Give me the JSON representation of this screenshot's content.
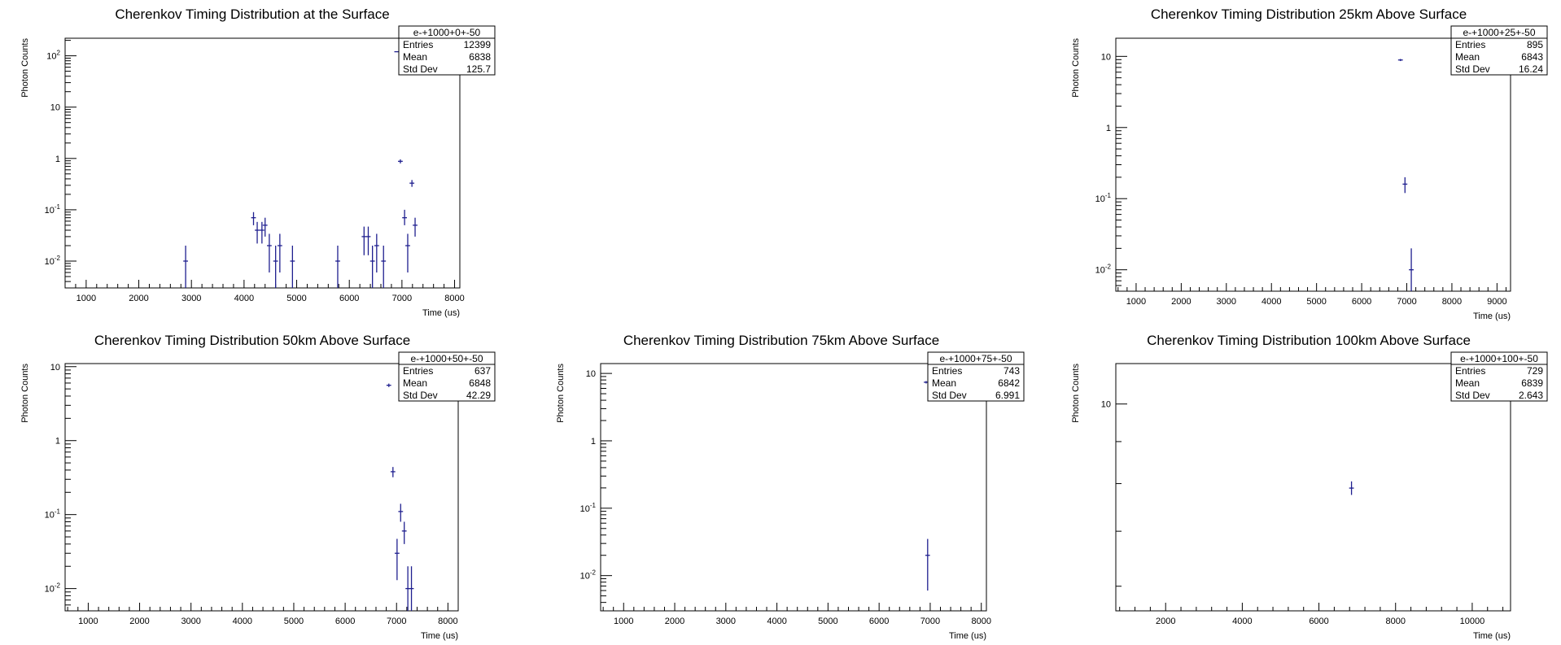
{
  "chart_data": [
    {
      "id": "p0",
      "type": "scatter",
      "title": "Cherenkov Timing Distribution at the Surface",
      "xlabel": "Time (us)",
      "ylabel": "Photon Counts",
      "xlim": [
        600,
        8100
      ],
      "ylim": [
        0.003,
        220
      ],
      "log_y": true,
      "x_ticks": [
        1000,
        2000,
        3000,
        4000,
        5000,
        6000,
        7000,
        8000
      ],
      "y_ticks": [
        {
          "v": 0.01,
          "base": "10",
          "exp": "-2"
        },
        {
          "v": 0.1,
          "base": "10",
          "exp": "-1"
        },
        {
          "v": 1,
          "base": "1",
          "exp": ""
        },
        {
          "v": 10,
          "base": "10",
          "exp": ""
        },
        {
          "v": 100,
          "base": "10",
          "exp": "2"
        }
      ],
      "stats": {
        "name": "e-+1000+0+-50",
        "rows": [
          [
            "Entries",
            "12399"
          ],
          [
            "Mean",
            "6838"
          ],
          [
            "Std Dev",
            "125.7"
          ]
        ]
      },
      "points": [
        {
          "x": 2890,
          "y": 0.01,
          "lo": 0.003,
          "hi": 0.02
        },
        {
          "x": 4180,
          "y": 0.07,
          "lo": 0.05,
          "hi": 0.09
        },
        {
          "x": 4250,
          "y": 0.04,
          "lo": 0.022,
          "hi": 0.058
        },
        {
          "x": 4340,
          "y": 0.04,
          "lo": 0.022,
          "hi": 0.058
        },
        {
          "x": 4400,
          "y": 0.05,
          "lo": 0.03,
          "hi": 0.07
        },
        {
          "x": 4480,
          "y": 0.02,
          "lo": 0.006,
          "hi": 0.034
        },
        {
          "x": 4600,
          "y": 0.01,
          "lo": 0.003,
          "hi": 0.02
        },
        {
          "x": 4680,
          "y": 0.02,
          "lo": 0.006,
          "hi": 0.034
        },
        {
          "x": 4920,
          "y": 0.01,
          "lo": 0.003,
          "hi": 0.02
        },
        {
          "x": 5780,
          "y": 0.01,
          "lo": 0.003,
          "hi": 0.02
        },
        {
          "x": 6280,
          "y": 0.03,
          "lo": 0.013,
          "hi": 0.047
        },
        {
          "x": 6360,
          "y": 0.03,
          "lo": 0.013,
          "hi": 0.047
        },
        {
          "x": 6440,
          "y": 0.01,
          "lo": 0.003,
          "hi": 0.02
        },
        {
          "x": 6520,
          "y": 0.02,
          "lo": 0.006,
          "hi": 0.034
        },
        {
          "x": 6650,
          "y": 0.01,
          "lo": 0.003,
          "hi": 0.02
        },
        {
          "x": 6900,
          "y": 120,
          "lo": 119,
          "hi": 121
        },
        {
          "x": 6970,
          "y": 0.88,
          "lo": 0.8,
          "hi": 0.96
        },
        {
          "x": 7050,
          "y": 0.07,
          "lo": 0.05,
          "hi": 0.1
        },
        {
          "x": 7110,
          "y": 0.02,
          "lo": 0.006,
          "hi": 0.034
        },
        {
          "x": 7190,
          "y": 0.33,
          "lo": 0.28,
          "hi": 0.38
        },
        {
          "x": 7250,
          "y": 0.05,
          "lo": 0.03,
          "hi": 0.07
        }
      ]
    },
    {
      "id": "p1",
      "type": "scatter",
      "title": "Cherenkov Timing Distribution 25km Above Surface",
      "xlabel": "Time (us)",
      "ylabel": "Photon Counts",
      "xlim": [
        550,
        9300
      ],
      "ylim": [
        0.005,
        18
      ],
      "log_y": true,
      "x_ticks": [
        1000,
        2000,
        3000,
        4000,
        5000,
        6000,
        7000,
        8000,
        9000
      ],
      "y_ticks": [
        {
          "v": 0.01,
          "base": "10",
          "exp": "-2"
        },
        {
          "v": 0.1,
          "base": "10",
          "exp": "-1"
        },
        {
          "v": 1,
          "base": "1",
          "exp": ""
        },
        {
          "v": 10,
          "base": "10",
          "exp": ""
        }
      ],
      "stats": {
        "name": "e-+1000+25+-50",
        "rows": [
          [
            "Entries",
            "895"
          ],
          [
            "Mean",
            "6843"
          ],
          [
            "Std Dev",
            "16.24"
          ]
        ]
      },
      "points": [
        {
          "x": 6860,
          "y": 8.9,
          "lo": 8.6,
          "hi": 9.2
        },
        {
          "x": 6960,
          "y": 0.16,
          "lo": 0.12,
          "hi": 0.2
        },
        {
          "x": 7100,
          "y": 0.01,
          "lo": 0.005,
          "hi": 0.02
        }
      ]
    },
    {
      "id": "p2",
      "type": "scatter",
      "title": "Cherenkov Timing Distribution 50km Above Surface",
      "xlabel": "Time (us)",
      "ylabel": "Photon Counts",
      "xlim": [
        550,
        8200
      ],
      "ylim": [
        0.005,
        11
      ],
      "log_y": true,
      "x_ticks": [
        1000,
        2000,
        3000,
        4000,
        5000,
        6000,
        7000,
        8000
      ],
      "y_ticks": [
        {
          "v": 0.01,
          "base": "10",
          "exp": "-2"
        },
        {
          "v": 0.1,
          "base": "10",
          "exp": "-1"
        },
        {
          "v": 1,
          "base": "1",
          "exp": ""
        },
        {
          "v": 10,
          "base": "10",
          "exp": ""
        }
      ],
      "stats": {
        "name": "e-+1000+50+-50",
        "rows": [
          [
            "Entries",
            "637"
          ],
          [
            "Mean",
            "6848"
          ],
          [
            "Std Dev",
            "42.29"
          ]
        ]
      },
      "points": [
        {
          "x": 6850,
          "y": 5.6,
          "lo": 5.3,
          "hi": 5.9
        },
        {
          "x": 6930,
          "y": 0.38,
          "lo": 0.32,
          "hi": 0.44
        },
        {
          "x": 7010,
          "y": 0.03,
          "lo": 0.013,
          "hi": 0.047
        },
        {
          "x": 7080,
          "y": 0.11,
          "lo": 0.08,
          "hi": 0.14
        },
        {
          "x": 7150,
          "y": 0.06,
          "lo": 0.04,
          "hi": 0.08
        },
        {
          "x": 7220,
          "y": 0.01,
          "lo": 0.005,
          "hi": 0.02
        },
        {
          "x": 7290,
          "y": 0.01,
          "lo": 0.005,
          "hi": 0.02
        }
      ]
    },
    {
      "id": "p3",
      "type": "scatter",
      "title": "Cherenkov Timing Distribution 75km Above Surface",
      "xlabel": "Time (us)",
      "ylabel": "Photon Counts",
      "xlim": [
        550,
        8100
      ],
      "ylim": [
        0.003,
        14
      ],
      "log_y": true,
      "x_ticks": [
        1000,
        2000,
        3000,
        4000,
        5000,
        6000,
        7000,
        8000
      ],
      "y_ticks": [
        {
          "v": 0.01,
          "base": "10",
          "exp": "-2"
        },
        {
          "v": 0.1,
          "base": "10",
          "exp": "-1"
        },
        {
          "v": 1,
          "base": "1",
          "exp": ""
        },
        {
          "v": 10,
          "base": "10",
          "exp": ""
        }
      ],
      "stats": {
        "name": "e-+1000+75+-50",
        "rows": [
          [
            "Entries",
            "743"
          ],
          [
            "Mean",
            "6842"
          ],
          [
            "Std Dev",
            "6.991"
          ]
        ]
      },
      "points": [
        {
          "x": 6920,
          "y": 7.4,
          "lo": 7.1,
          "hi": 7.7
        },
        {
          "x": 6950,
          "y": 0.02,
          "lo": 0.006,
          "hi": 0.035
        }
      ]
    },
    {
      "id": "p4",
      "type": "scatter",
      "title": "Cherenkov Timing Distribution 100km Above Surface",
      "xlabel": "Time (us)",
      "ylabel": "Photon Counts",
      "xlim": [
        700,
        11000
      ],
      "ylim": [
        5.6,
        11.2
      ],
      "log_y": true,
      "x_ticks": [
        2000,
        4000,
        6000,
        8000,
        10000
      ],
      "y_ticks": [
        {
          "v": 10,
          "base": "10",
          "exp": ""
        }
      ],
      "stats": {
        "name": "e-+1000+100+-50",
        "rows": [
          [
            "Entries",
            "729"
          ],
          [
            "Mean",
            "6839"
          ],
          [
            "Std Dev",
            "2.643"
          ]
        ]
      },
      "points": [
        {
          "x": 6850,
          "y": 7.9,
          "lo": 7.75,
          "hi": 8.05
        }
      ]
    }
  ]
}
